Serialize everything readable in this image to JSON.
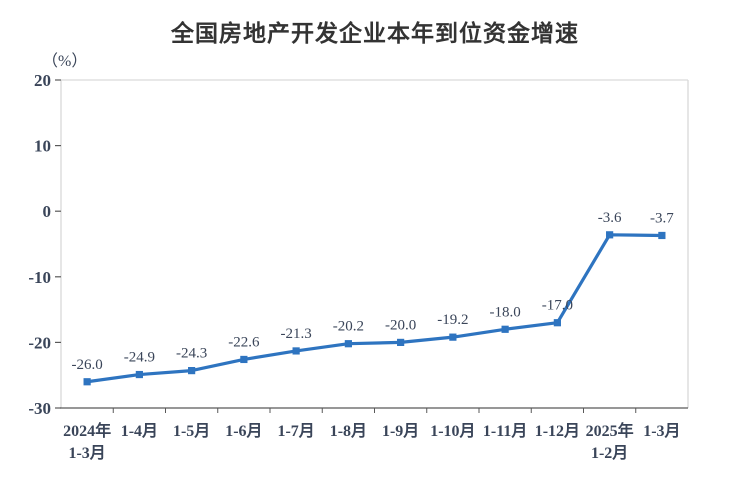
{
  "chart_data": {
    "type": "line",
    "title": "全国房地产开发企业本年到位资金增速",
    "unit_label": "（%）",
    "categories": [
      [
        "2024年",
        "1-3月"
      ],
      [
        "1-4月"
      ],
      [
        "1-5月"
      ],
      [
        "1-6月"
      ],
      [
        "1-7月"
      ],
      [
        "1-8月"
      ],
      [
        "1-9月"
      ],
      [
        "1-10月"
      ],
      [
        "1-11月"
      ],
      [
        "1-12月"
      ],
      [
        "2025年",
        "1-2月"
      ],
      [
        "1-3月"
      ]
    ],
    "values": [
      -26.0,
      -24.9,
      -24.3,
      -22.6,
      -21.3,
      -20.2,
      -20.0,
      -19.2,
      -18.0,
      -17.0,
      -3.6,
      -3.7
    ],
    "data_labels": [
      "-26.0",
      "-24.9",
      "-24.3",
      "-22.6",
      "-21.3",
      "-20.2",
      "-20.0",
      "-19.2",
      "-18.0",
      "-17.0",
      "-3.6",
      "-3.7"
    ],
    "yticks": [
      20,
      10,
      0,
      -10,
      -20,
      -30
    ],
    "ylim": [
      -30,
      20
    ],
    "grid": false,
    "legend": "none",
    "xlabel": "",
    "ylabel": "（%）",
    "colors": {
      "line": "#2E74C0",
      "marker": "#2E74C0",
      "axis_text": "#3A4559",
      "data_label_text": "#3A4559",
      "title_text": "#333333",
      "plot_border": "#D9D9D9",
      "axis_line": "#595959"
    }
  }
}
